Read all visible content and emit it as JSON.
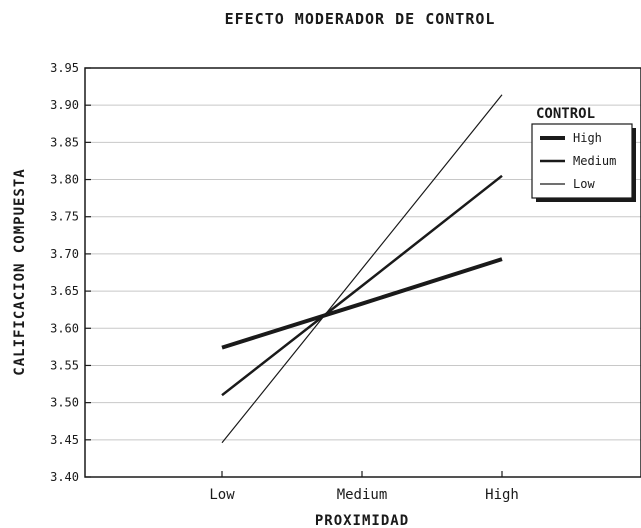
{
  "chart_data": {
    "type": "line",
    "title": "EFECTO MODERADOR DE CONTROL",
    "xlabel": "PROXIMIDAD",
    "ylabel": "CALIFICACION COMPUESTA",
    "categories": [
      "Low",
      "Medium",
      "High"
    ],
    "ylim": [
      3.4,
      3.95
    ],
    "yticks": [
      "3.40",
      "3.45",
      "3.50",
      "3.55",
      "3.60",
      "3.65",
      "3.70",
      "3.75",
      "3.80",
      "3.85",
      "3.90",
      "3.95"
    ],
    "grid": "horizontal",
    "legend": {
      "title": "CONTROL",
      "position": "top-right"
    },
    "series": [
      {
        "name": "High",
        "values": [
          3.574,
          3.633,
          3.693
        ],
        "color": "#1a1a1a",
        "weight": "heavy"
      },
      {
        "name": "Medium",
        "values": [
          3.51,
          3.657,
          3.805
        ],
        "color": "#1a1a1a",
        "weight": "medium"
      },
      {
        "name": "Low",
        "values": [
          3.446,
          3.68,
          3.914
        ],
        "color": "#1a1a1a",
        "weight": "light"
      }
    ]
  }
}
